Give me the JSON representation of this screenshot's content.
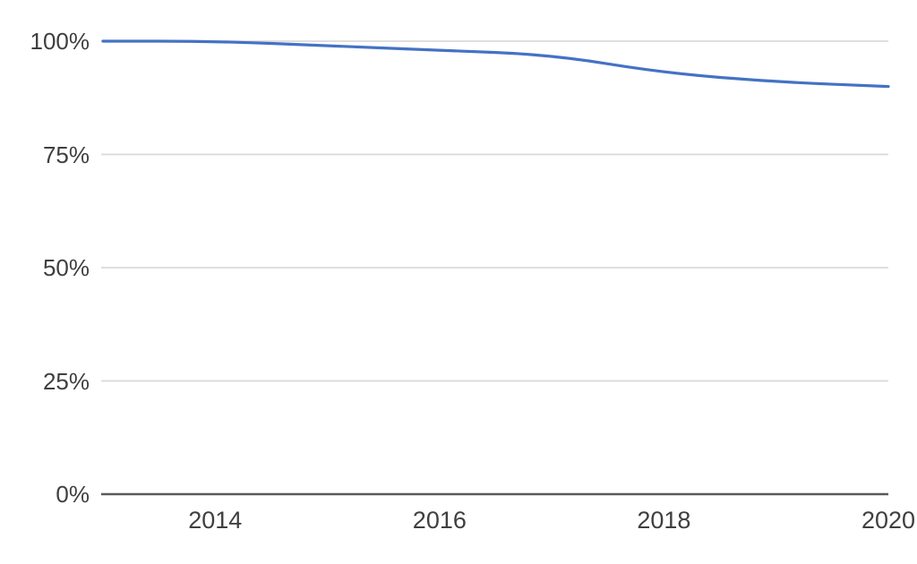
{
  "chart_data": {
    "type": "line",
    "x": [
      2013,
      2014,
      2015,
      2016,
      2017,
      2018,
      2019,
      2020
    ],
    "values": [
      100,
      100,
      99,
      98,
      97,
      93,
      91,
      90
    ],
    "title": "",
    "xlabel": "",
    "ylabel": "",
    "xlim": [
      2013,
      2020
    ],
    "ylim": [
      0,
      100
    ],
    "grid": true,
    "legend": "none",
    "y_tick_values": [
      100,
      75,
      50,
      25,
      0
    ],
    "y_tick_labels": [
      "100%",
      "75%",
      "50%",
      "25%",
      "0%"
    ],
    "x_tick_values": [
      2014,
      2016,
      2018,
      2020
    ],
    "x_tick_labels": [
      "2014",
      "2016",
      "2018",
      "2020"
    ],
    "line_color": "#4472C4",
    "gridline_color": "#D9D9D9",
    "axis_line_color": "#595959",
    "tick_text_color": "#3f3f3f",
    "background_color": "#ffffff"
  }
}
